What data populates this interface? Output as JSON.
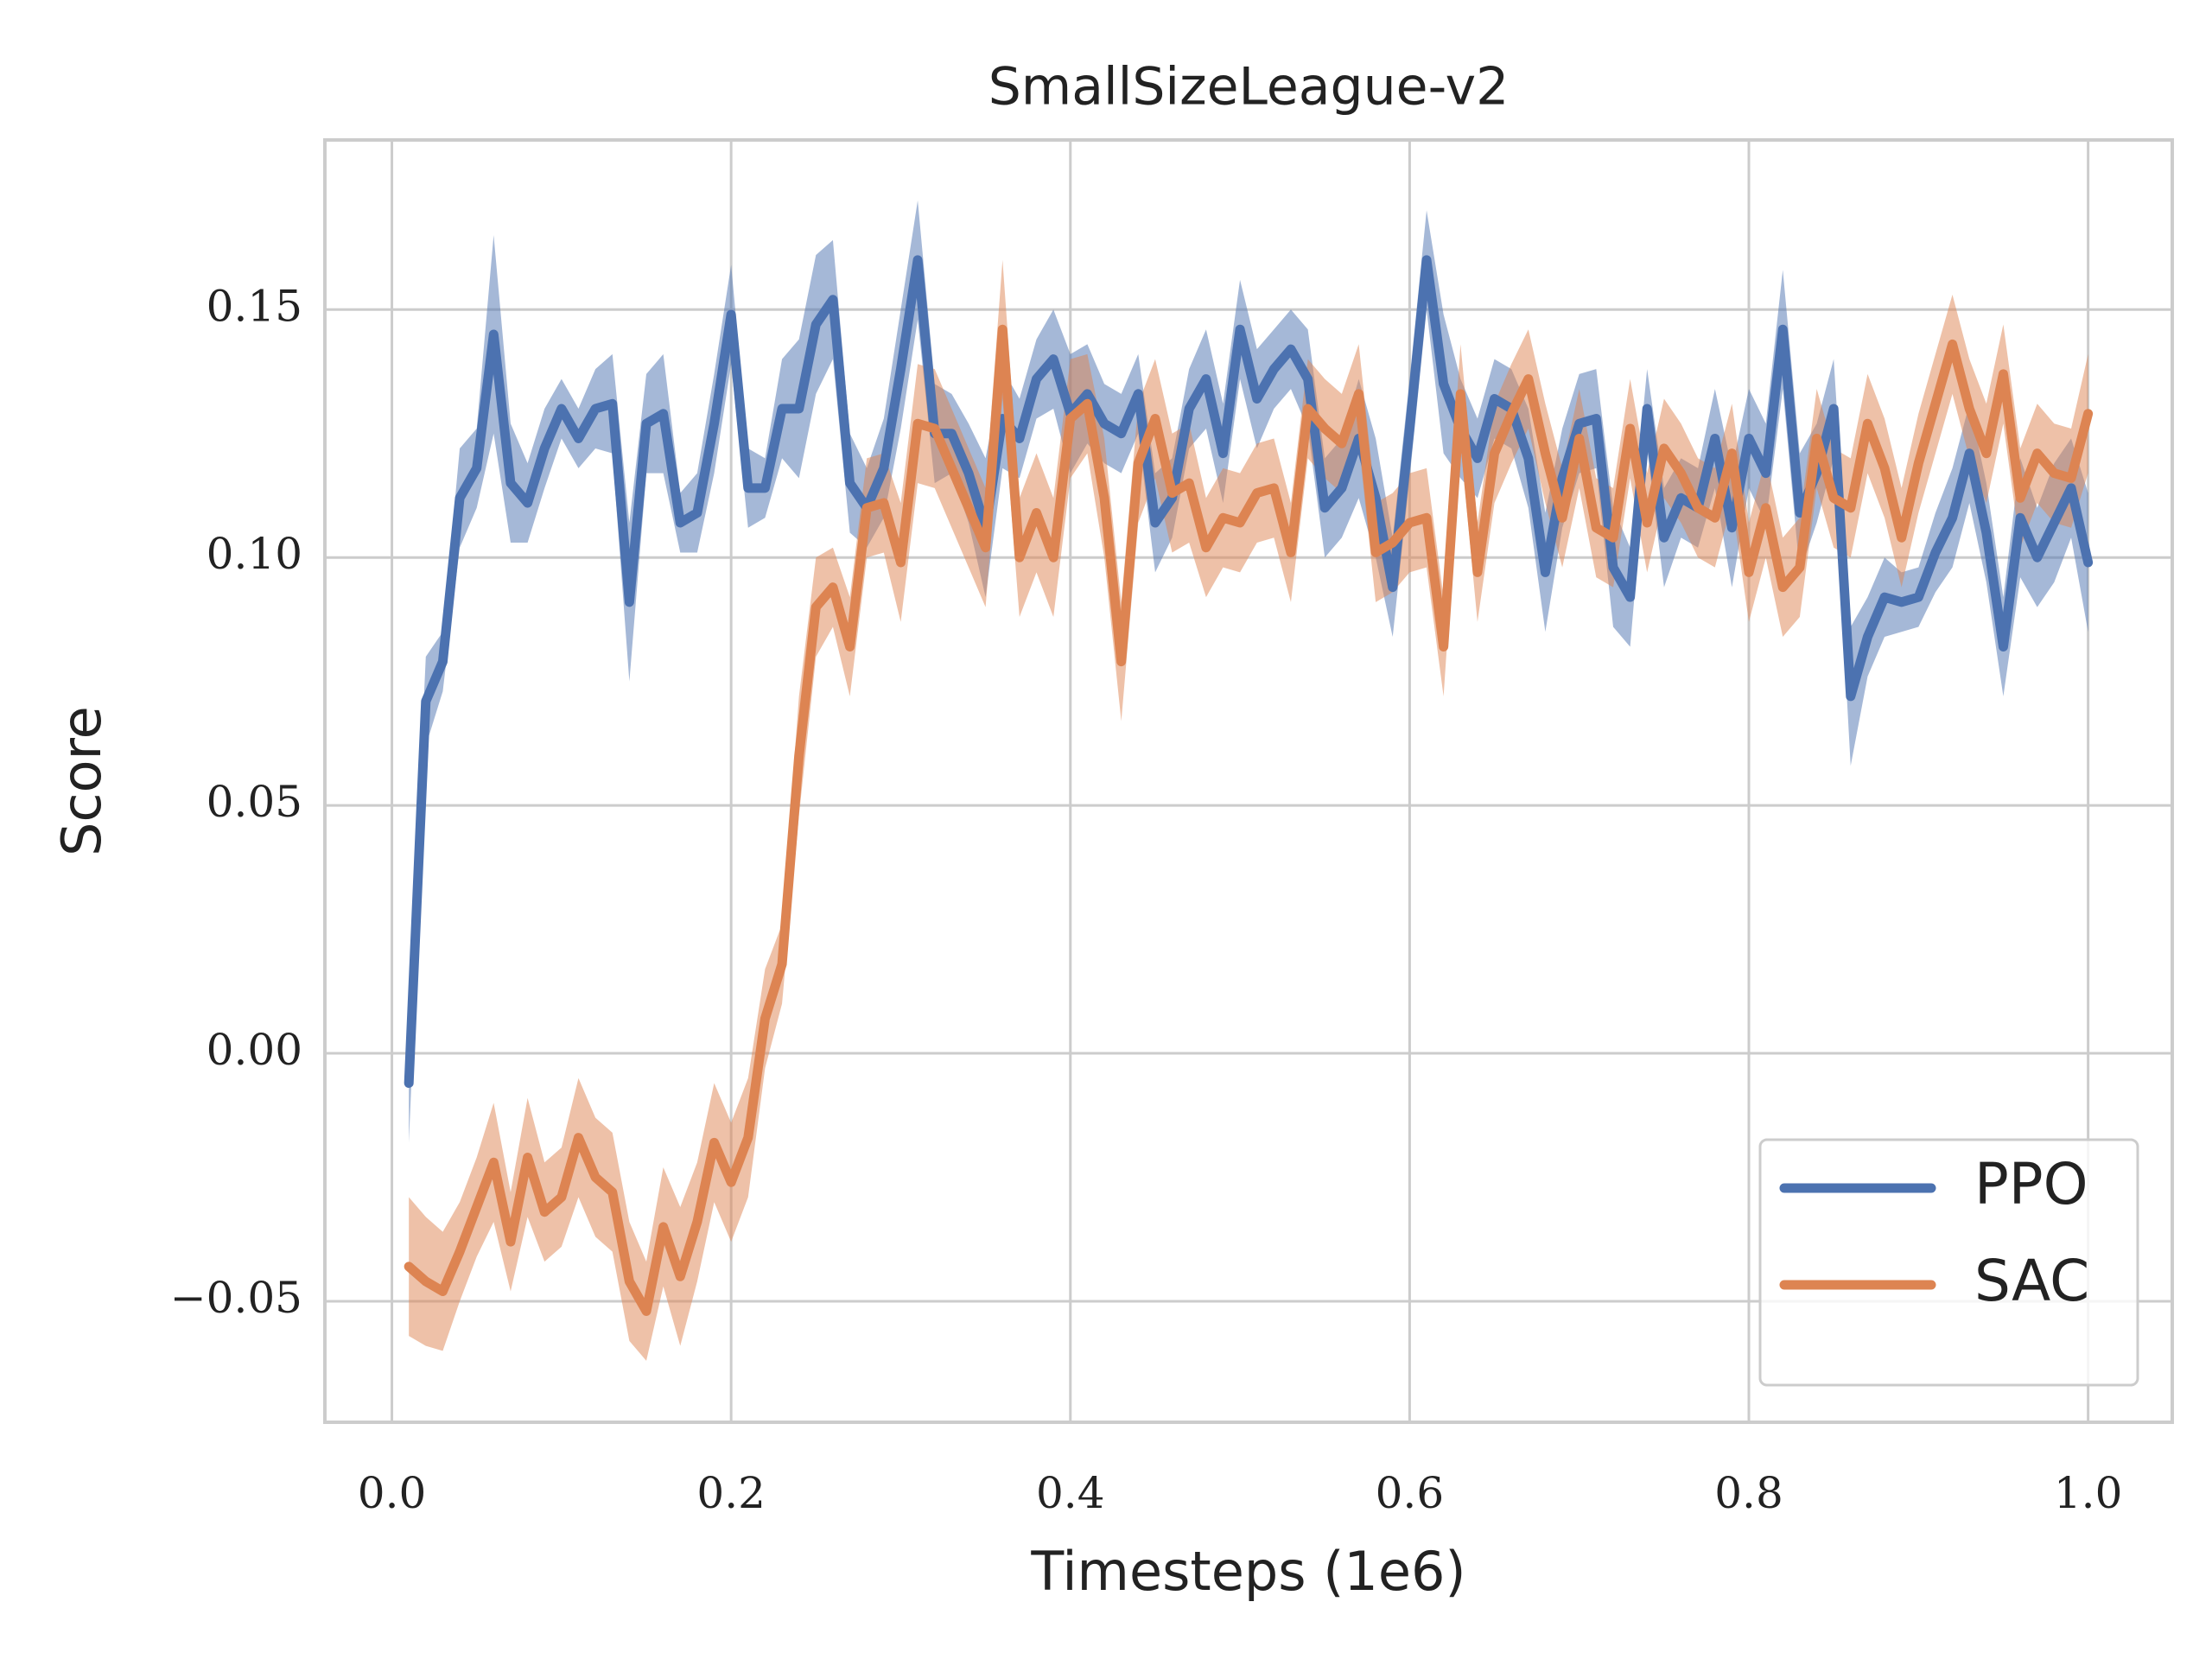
{
  "chart_data": {
    "type": "line",
    "title": "SmallSizeLeague-v2",
    "xlabel": "Timesteps (1e6)",
    "ylabel": "Score",
    "x": [
      0.01,
      0.02,
      0.03,
      0.04,
      0.05,
      0.06,
      0.07,
      0.08,
      0.09,
      0.1,
      0.11,
      0.12,
      0.13,
      0.14,
      0.15,
      0.16,
      0.17,
      0.18,
      0.19,
      0.2,
      0.21,
      0.22,
      0.23,
      0.24,
      0.25,
      0.26,
      0.27,
      0.28,
      0.29,
      0.3,
      0.31,
      0.32,
      0.33,
      0.34,
      0.35,
      0.36,
      0.37,
      0.38,
      0.39,
      0.4,
      0.41,
      0.42,
      0.43,
      0.44,
      0.45,
      0.46,
      0.47,
      0.48,
      0.49,
      0.5,
      0.51,
      0.52,
      0.53,
      0.54,
      0.55,
      0.56,
      0.57,
      0.58,
      0.59,
      0.6,
      0.61,
      0.62,
      0.63,
      0.64,
      0.65,
      0.66,
      0.67,
      0.68,
      0.69,
      0.7,
      0.71,
      0.72,
      0.73,
      0.74,
      0.75,
      0.76,
      0.77,
      0.78,
      0.79,
      0.8,
      0.81,
      0.82,
      0.83,
      0.84,
      0.85,
      0.86,
      0.87,
      0.88,
      0.89,
      0.9,
      0.91,
      0.92,
      0.93,
      0.94,
      0.95,
      0.96,
      0.97,
      0.98,
      0.99,
      1.0
    ],
    "series": [
      {
        "name": "PPO",
        "color": "#4c72b0",
        "values": [
          -0.006,
          0.071,
          0.079,
          0.112,
          0.118,
          0.145,
          0.115,
          0.111,
          0.122,
          0.13,
          0.124,
          0.13,
          0.131,
          0.091,
          0.127,
          0.129,
          0.107,
          0.109,
          0.127,
          0.149,
          0.114,
          0.114,
          0.13,
          0.13,
          0.147,
          0.152,
          0.115,
          0.11,
          0.118,
          0.138,
          0.16,
          0.125,
          0.125,
          0.117,
          0.106,
          0.128,
          0.124,
          0.136,
          0.14,
          0.129,
          0.133,
          0.127,
          0.125,
          0.133,
          0.107,
          0.112,
          0.13,
          0.136,
          0.121,
          0.146,
          0.132,
          0.138,
          0.142,
          0.136,
          0.11,
          0.114,
          0.124,
          0.112,
          0.094,
          0.126,
          0.16,
          0.135,
          0.126,
          0.12,
          0.132,
          0.13,
          0.12,
          0.097,
          0.116,
          0.127,
          0.128,
          0.098,
          0.092,
          0.13,
          0.104,
          0.112,
          0.11,
          0.124,
          0.106,
          0.124,
          0.117,
          0.146,
          0.109,
          0.117,
          0.13,
          0.072,
          0.084,
          0.092,
          0.091,
          0.092,
          0.101,
          0.108,
          0.121,
          0.105,
          0.082,
          0.108,
          0.1,
          0.107,
          0.114,
          0.099
        ],
        "errors": [
          0.012,
          0.009,
          0.006,
          0.01,
          0.008,
          0.02,
          0.012,
          0.008,
          0.008,
          0.006,
          0.006,
          0.008,
          0.01,
          0.016,
          0.01,
          0.012,
          0.006,
          0.008,
          0.01,
          0.01,
          0.008,
          0.006,
          0.01,
          0.014,
          0.014,
          0.012,
          0.01,
          0.008,
          0.01,
          0.012,
          0.012,
          0.01,
          0.008,
          0.01,
          0.014,
          0.01,
          0.008,
          0.008,
          0.01,
          0.012,
          0.01,
          0.008,
          0.008,
          0.008,
          0.01,
          0.008,
          0.008,
          0.01,
          0.01,
          0.01,
          0.01,
          0.008,
          0.008,
          0.01,
          0.01,
          0.01,
          0.012,
          0.012,
          0.01,
          0.01,
          0.01,
          0.014,
          0.01,
          0.008,
          0.008,
          0.008,
          0.01,
          0.012,
          0.01,
          0.01,
          0.01,
          0.012,
          0.01,
          0.008,
          0.01,
          0.008,
          0.008,
          0.01,
          0.012,
          0.01,
          0.01,
          0.012,
          0.012,
          0.01,
          0.01,
          0.014,
          0.008,
          0.008,
          0.006,
          0.006,
          0.008,
          0.01,
          0.01,
          0.01,
          0.01,
          0.012,
          0.01,
          0.012,
          0.01,
          0.014
        ]
      },
      {
        "name": "SAC",
        "color": "#dd8452",
        "values": [
          -0.043,
          -0.046,
          -0.048,
          -0.04,
          -0.031,
          -0.022,
          -0.038,
          -0.021,
          -0.032,
          -0.029,
          -0.017,
          -0.025,
          -0.028,
          -0.046,
          -0.052,
          -0.035,
          -0.045,
          -0.034,
          -0.018,
          -0.026,
          -0.017,
          0.007,
          0.018,
          0.06,
          0.09,
          0.094,
          0.082,
          0.11,
          0.111,
          0.099,
          0.127,
          0.126,
          0.118,
          0.11,
          0.102,
          0.146,
          0.1,
          0.109,
          0.1,
          0.128,
          0.131,
          0.112,
          0.079,
          0.119,
          0.128,
          0.113,
          0.115,
          0.102,
          0.108,
          0.107,
          0.113,
          0.114,
          0.101,
          0.13,
          0.126,
          0.123,
          0.133,
          0.101,
          0.103,
          0.107,
          0.108,
          0.082,
          0.133,
          0.097,
          0.121,
          0.129,
          0.136,
          0.121,
          0.108,
          0.124,
          0.106,
          0.104,
          0.126,
          0.107,
          0.122,
          0.117,
          0.11,
          0.108,
          0.121,
          0.097,
          0.11,
          0.094,
          0.098,
          0.124,
          0.112,
          0.11,
          0.127,
          0.118,
          0.104,
          0.119,
          0.131,
          0.143,
          0.13,
          0.121,
          0.137,
          0.112,
          0.121,
          0.117,
          0.116,
          0.129
        ],
        "errors": [
          0.014,
          0.013,
          0.012,
          0.01,
          0.01,
          0.012,
          0.01,
          0.012,
          0.01,
          0.01,
          0.012,
          0.012,
          0.012,
          0.012,
          0.01,
          0.012,
          0.014,
          0.012,
          0.012,
          0.012,
          0.012,
          0.01,
          0.008,
          0.012,
          0.01,
          0.008,
          0.01,
          0.01,
          0.01,
          0.012,
          0.012,
          0.012,
          0.012,
          0.012,
          0.012,
          0.014,
          0.012,
          0.012,
          0.012,
          0.012,
          0.01,
          0.012,
          0.012,
          0.012,
          0.012,
          0.012,
          0.012,
          0.01,
          0.01,
          0.01,
          0.01,
          0.01,
          0.01,
          0.01,
          0.01,
          0.01,
          0.01,
          0.01,
          0.01,
          0.01,
          0.01,
          0.01,
          0.01,
          0.01,
          0.01,
          0.01,
          0.01,
          0.01,
          0.01,
          0.01,
          0.01,
          0.01,
          0.01,
          0.01,
          0.01,
          0.01,
          0.01,
          0.01,
          0.01,
          0.01,
          0.01,
          0.01,
          0.01,
          0.01,
          0.01,
          0.01,
          0.01,
          0.01,
          0.01,
          0.01,
          0.01,
          0.01,
          0.01,
          0.01,
          0.01,
          0.01,
          0.01,
          0.01,
          0.01,
          0.012
        ]
      }
    ],
    "xlim": [
      -0.0395,
      1.0496
    ],
    "ylim": [
      -0.0744,
      0.1842
    ],
    "xticks": [
      {
        "value": 0,
        "label": "0.0"
      },
      0.2,
      0.4,
      0.6,
      0.8,
      {
        "value": 1,
        "label": "1.0"
      }
    ],
    "yticks": [
      {
        "value": -0.05,
        "label": "−0.05"
      },
      {
        "value": 0,
        "label": "0.00"
      },
      0.05,
      {
        "value": 0.1,
        "label": "0.10"
      },
      0.15
    ],
    "grid": true,
    "legend": "lower right"
  }
}
